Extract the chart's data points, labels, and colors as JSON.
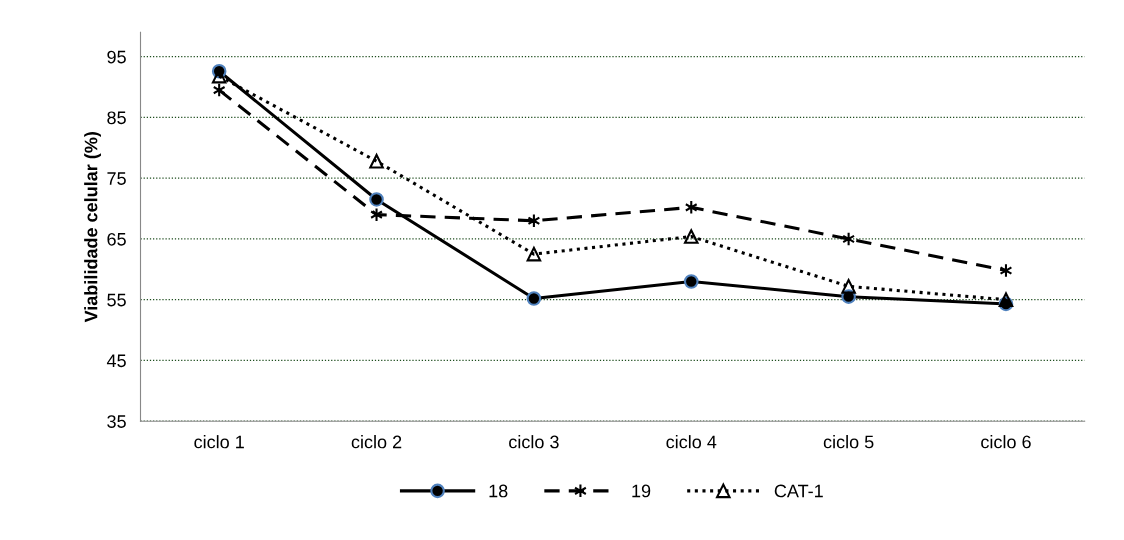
{
  "chart_data": {
    "type": "line",
    "ylabel": "Viabilidade celular (%)",
    "categories": [
      "ciclo 1",
      "ciclo 2",
      "ciclo 3",
      "ciclo 4",
      "ciclo 5",
      "ciclo 6"
    ],
    "series": [
      {
        "name": "18",
        "color": "#000000",
        "values": [
          92.6,
          71.5,
          55.2,
          58,
          55.5,
          54.3
        ],
        "marker": "circle",
        "line_style": "solid"
      },
      {
        "name": "19",
        "color": "#000000",
        "values": [
          89.5,
          69,
          68,
          70.2,
          65,
          59.8
        ],
        "marker": "cross",
        "line_style": "dashed"
      },
      {
        "name": "CAT-1",
        "color": "#000000",
        "values": [
          91.8,
          77.8,
          62.5,
          65.4,
          57.2,
          55
        ],
        "marker": "triangle",
        "line_style": "dotted"
      }
    ],
    "ylim": [
      35,
      99
    ],
    "yticks": [
      35,
      45,
      55,
      65,
      75,
      85,
      95
    ],
    "grid": "y",
    "legend": "bottom"
  }
}
